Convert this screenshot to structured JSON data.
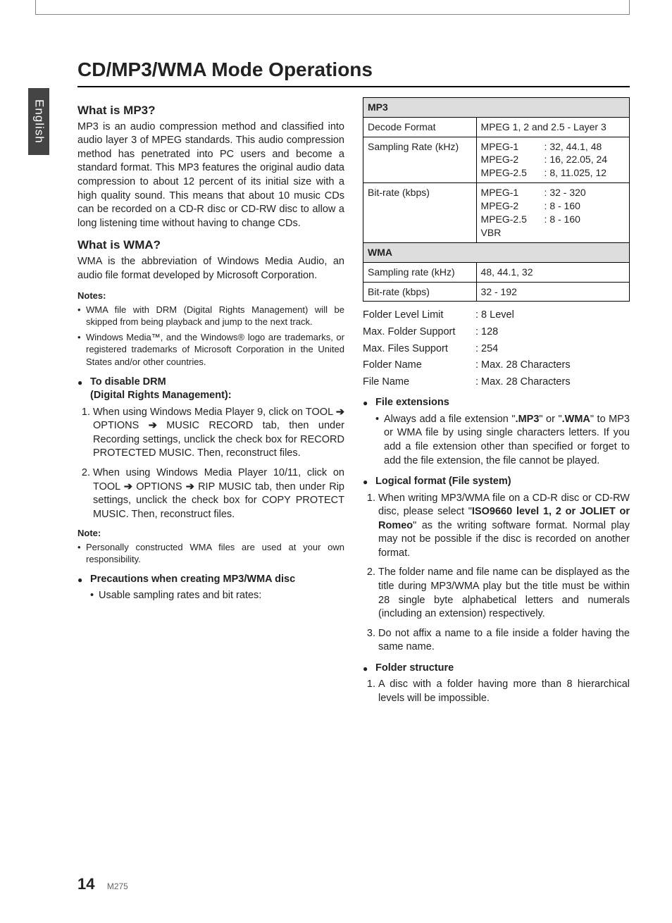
{
  "sideTab": "English",
  "pageTitle": "CD/MP3/WMA Mode Operations",
  "footer": {
    "page": "14",
    "model": "M275"
  },
  "left": {
    "s1_title": "What is MP3?",
    "s1_body": "MP3 is an audio compression method and classified into audio layer 3 of MPEG standards. This audio compression method has penetrated into PC users and become a standard format. This MP3 features the original audio data compression to about 12 percent of its initial size with a high quality sound. This means that about 10 music CDs can be recorded on a CD-R disc or CD-RW disc to allow a long listening time without having to change CDs.",
    "s2_title": "What is WMA?",
    "s2_body": "WMA is the abbreviation of Windows Media Audio, an audio file format developed by Microsoft Corporation.",
    "notes_head": "Notes:",
    "note1": "WMA file with DRM (Digital Rights Management) will be skipped from being playback and jump to the next track.",
    "note2": "Windows Media™, and the Windows® logo are trademarks, or registered trademarks of Microsoft Corporation in the United States and/or other countries.",
    "drm_head1": "To disable DRM",
    "drm_head2": "(Digital Rights Management):",
    "drm_step1_a": "When using Windows Media Player 9, click on TOOL ",
    "drm_step1_b": " OPTIONS ",
    "drm_step1_c": " MUSIC RECORD tab, then under Recording settings, unclick the check box for RECORD PROTECTED MUSIC. Then, reconstruct files.",
    "drm_step2_a": "When using Windows Media Player 10/11, click on TOOL ",
    "drm_step2_b": " OPTIONS ",
    "drm_step2_c": " RIP MUSIC tab, then under Rip settings, unclick the check box for COPY PROTECT MUSIC. Then, reconstruct files.",
    "arrow": "➔",
    "note_head2": "Note:",
    "note3": "Personally constructed WMA files are used at your own responsibility.",
    "precautions_head": "Precautions when creating MP3/WMA disc",
    "precautions_item": "Usable sampling rates and bit rates:"
  },
  "table": {
    "mp3_head": "MP3",
    "mp3_r1_k": "Decode Format",
    "mp3_r1_v": "MPEG 1, 2 and 2.5 - Layer 3",
    "mp3_r2_k": "Sampling Rate (kHz)",
    "mp3_r2_v_rows": [
      {
        "a": "MPEG-1",
        "b": ": 32, 44.1, 48"
      },
      {
        "a": "MPEG-2",
        "b": ": 16, 22.05, 24"
      },
      {
        "a": "MPEG-2.5",
        "b": ": 8, 11.025, 12"
      }
    ],
    "mp3_r3_k": "Bit-rate (kbps)",
    "mp3_r3_v_rows": [
      {
        "a": "MPEG-1",
        "b": ": 32 - 320"
      },
      {
        "a": "MPEG-2",
        "b": ": 8 - 160"
      },
      {
        "a": "MPEG-2.5",
        "b": ": 8 - 160"
      },
      {
        "a": "VBR",
        "b": ""
      }
    ],
    "wma_head": "WMA",
    "wma_r1_k": "Sampling rate (kHz)",
    "wma_r1_v": "48, 44.1, 32",
    "wma_r2_k": "Bit-rate (kbps)",
    "wma_r2_v": "32 - 192"
  },
  "kv": {
    "r1k": "Folder Level Limit",
    "r1v": ": 8 Level",
    "r2k": "Max. Folder Support",
    "r2v": ": 128",
    "r3k": "Max. Files Support",
    "r3v": ": 254",
    "r4k": "Folder Name",
    "r4v": ": Max. 28 Characters",
    "r5k": "File Name",
    "r5v": ": Max. 28 Characters"
  },
  "right": {
    "ext_head": "File extensions",
    "ext_body_a": "Always add a file extension \"",
    "ext_mp3": ".MP3",
    "ext_body_b": "\" or \"",
    "ext_wma": ".WMA",
    "ext_body_c": "\" to MP3 or WMA file by using single characters letters. If you add a file extension other than specified or forget to add the file extension, the file cannot be played.",
    "log_head": "Logical format (File system)",
    "log_step1_a": "When writing MP3/WMA file on a CD-R disc or CD-RW disc, please select \"",
    "log_step1_bold": "ISO9660 level 1, 2 or JOLIET or Romeo",
    "log_step1_b": "\" as the writing software format. Normal play may not be possible if the disc is recorded on another format.",
    "log_step2": "The folder name and file name can be displayed as the title during MP3/WMA play but the title must be within 28 single byte alphabetical letters and numerals (including an extension) respectively.",
    "log_step3": "Do not affix a name to a file inside a folder having the same name.",
    "fold_head": "Folder structure",
    "fold_step1": "A disc with a folder having more than 8 hierarchical levels will be impossible."
  }
}
